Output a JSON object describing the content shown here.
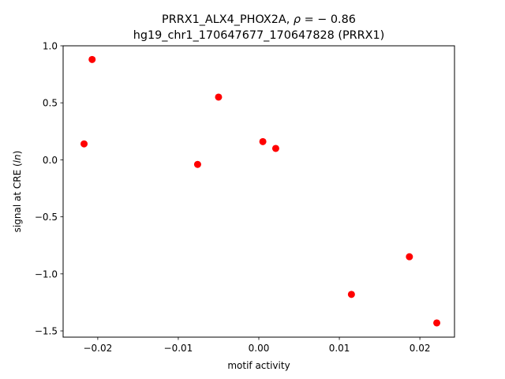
{
  "chart_data": {
    "type": "scatter",
    "title_line1_prefix": "PRRX1_ALX4_PHOX2A, ",
    "title_rho_symbol": "ρ",
    "title_rho_value": " = − 0.86",
    "title_line2": "hg19_chr1_170647677_170647828 (PRRX1)",
    "xlabel": "motif activity",
    "ylabel_prefix": "signal at CRE (",
    "ylabel_italic": "ln",
    "ylabel_suffix": ")",
    "xlim": [
      -0.0243,
      0.0243
    ],
    "ylim": [
      -1.555,
      1.0
    ],
    "x_ticks": [
      {
        "value": -0.02,
        "label": "−0.02"
      },
      {
        "value": -0.01,
        "label": "−0.01"
      },
      {
        "value": 0.0,
        "label": "0.00"
      },
      {
        "value": 0.01,
        "label": "0.01"
      },
      {
        "value": 0.02,
        "label": "0.02"
      }
    ],
    "y_ticks": [
      {
        "value": 1.0,
        "label": "1.0"
      },
      {
        "value": 0.5,
        "label": "0.5"
      },
      {
        "value": 0.0,
        "label": "0.0"
      },
      {
        "value": -0.5,
        "label": "−0.5"
      },
      {
        "value": -1.0,
        "label": "−1.0"
      },
      {
        "value": -1.5,
        "label": "−1.5"
      }
    ],
    "marker_color": "#ff0000",
    "grid": false,
    "points": [
      {
        "x": -0.0207,
        "y": 0.88
      },
      {
        "x": -0.0217,
        "y": 0.14
      },
      {
        "x": -0.005,
        "y": 0.55
      },
      {
        "x": -0.0076,
        "y": -0.04
      },
      {
        "x": 0.0005,
        "y": 0.16
      },
      {
        "x": 0.0021,
        "y": 0.1
      },
      {
        "x": 0.0115,
        "y": -1.18
      },
      {
        "x": 0.0187,
        "y": -0.85
      },
      {
        "x": 0.0221,
        "y": -1.43
      }
    ]
  }
}
